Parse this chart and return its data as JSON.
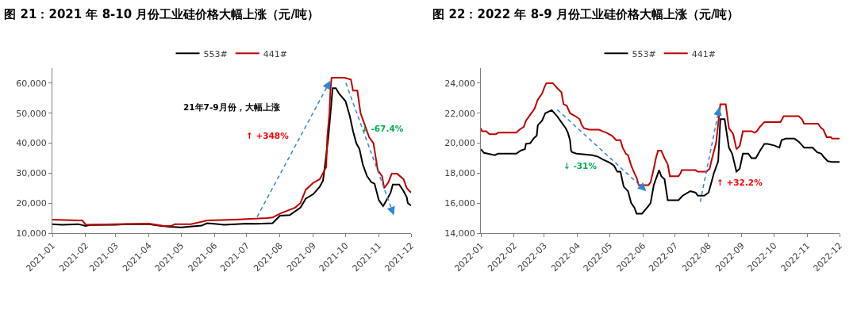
{
  "chart_data": [
    {
      "type": "line",
      "title": "图 21：2021 年 8-10 月份工业硅价格大幅上涨（元/吨）",
      "legend": "top",
      "grid": false,
      "marker": "none",
      "line_style": "solid",
      "xlim": [
        "2021-01-01",
        "2021-12-01"
      ],
      "xticks": [
        "2021-01",
        "2021-02",
        "2021-03",
        "2021-04",
        "2021-05",
        "2021-06",
        "2021-07",
        "2021-08",
        "2021-09",
        "2021-10",
        "2021-11",
        "2021-12"
      ],
      "ylim": [
        10000,
        65000
      ],
      "yticks": [
        {
          "value": 10000,
          "label": "10,000"
        },
        {
          "value": 20000,
          "label": "20,000"
        },
        {
          "value": 30000,
          "label": "30,000"
        },
        {
          "value": 40000,
          "label": "40,000"
        },
        {
          "value": 50000,
          "label": "50,000"
        },
        {
          "value": 60000,
          "label": "60,000"
        }
      ],
      "annotations": [
        "21年7-9月份，大幅上涨",
        "↑ +348%",
        "↓ -67.4%"
      ],
      "series": [
        {
          "name": "553#",
          "color": "#000000",
          "x": [
            "2021-01-01",
            "2021-01-10",
            "2021-01-25",
            "2021-02-01",
            "2021-02-05",
            "2021-03-01",
            "2021-03-10",
            "2021-04-01",
            "2021-04-10",
            "2021-04-20",
            "2021-05-01",
            "2021-05-20",
            "2021-05-25",
            "2021-06-01",
            "2021-06-10",
            "2021-07-01",
            "2021-07-10",
            "2021-07-25",
            "2021-08-01",
            "2021-08-10",
            "2021-08-20",
            "2021-08-25",
            "2021-09-01",
            "2021-09-07",
            "2021-09-10",
            "2021-09-12",
            "2021-09-15",
            "2021-09-17",
            "2021-09-19",
            "2021-09-22",
            "2021-09-25",
            "2021-10-01",
            "2021-10-05",
            "2021-10-08",
            "2021-10-11",
            "2021-10-14",
            "2021-10-17",
            "2021-10-21",
            "2021-10-25",
            "2021-10-28",
            "2021-11-01",
            "2021-11-05",
            "2021-11-09",
            "2021-11-12",
            "2021-11-14",
            "2021-11-20",
            "2021-11-24",
            "2021-11-27",
            "2021-11-28",
            "2021-12-01"
          ],
          "values": [
            13000,
            12800,
            13000,
            12400,
            12700,
            12800,
            13000,
            13000,
            12500,
            12100,
            11900,
            12500,
            13300,
            13100,
            12800,
            13200,
            13100,
            13300,
            15800,
            16000,
            18500,
            21500,
            23000,
            25500,
            27500,
            33000,
            42000,
            50000,
            58300,
            58300,
            56500,
            54000,
            49000,
            44000,
            40000,
            38000,
            33000,
            29000,
            27000,
            26500,
            21000,
            19000,
            21500,
            23500,
            26200,
            26200,
            24000,
            22000,
            20000,
            19200
          ]
        },
        {
          "name": "441#",
          "color": "#c00000",
          "x": [
            "2021-01-01",
            "2021-01-25",
            "2021-01-29",
            "2021-02-01",
            "2021-03-01",
            "2021-04-01",
            "2021-04-08",
            "2021-04-15",
            "2021-04-22",
            "2021-04-25",
            "2021-05-10",
            "2021-05-25",
            "2021-06-01",
            "2021-06-20",
            "2021-07-01",
            "2021-07-20",
            "2021-07-25",
            "2021-08-01",
            "2021-08-08",
            "2021-08-15",
            "2021-08-20",
            "2021-08-25",
            "2021-09-01",
            "2021-09-07",
            "2021-09-10",
            "2021-09-13",
            "2021-09-14",
            "2021-09-16",
            "2021-09-17",
            "2021-09-18",
            "2021-09-30",
            "2021-10-06",
            "2021-10-08",
            "2021-10-12",
            "2021-10-15",
            "2021-10-18",
            "2021-10-23",
            "2021-10-27",
            "2021-10-31",
            "2021-11-04",
            "2021-11-06",
            "2021-11-10",
            "2021-11-13",
            "2021-11-18",
            "2021-11-24",
            "2021-11-27",
            "2021-12-01"
          ],
          "values": [
            14500,
            14200,
            14200,
            12800,
            13000,
            13200,
            12800,
            12400,
            12400,
            13000,
            13000,
            14200,
            14300,
            14500,
            14700,
            15000,
            15200,
            16500,
            17500,
            18500,
            20000,
            24500,
            26800,
            28000,
            30000,
            32000,
            42000,
            50000,
            58000,
            61800,
            61800,
            61200,
            57500,
            57500,
            50000,
            47000,
            42000,
            40000,
            31000,
            29000,
            25000,
            27000,
            29800,
            29800,
            28000,
            25000,
            23500
          ]
        }
      ]
    },
    {
      "type": "line",
      "title": "图 22：2022 年 8-9 月份工业硅价格大幅上涨（元/吨）",
      "legend": "top",
      "grid": false,
      "marker": "none",
      "line_style": "solid",
      "xlim": [
        "2022-01-01",
        "2022-12-01"
      ],
      "xticks": [
        "2022-01",
        "2022-02",
        "2022-03",
        "2022-04",
        "2022-05",
        "2022-06",
        "2022-07",
        "2022-08",
        "2022-09",
        "2022-10",
        "2022-11",
        "2022-12"
      ],
      "ylim": [
        14000,
        25000
      ],
      "yticks": [
        {
          "value": 14000,
          "label": "14,000"
        },
        {
          "value": 16000,
          "label": "16,000"
        },
        {
          "value": 18000,
          "label": "18,000"
        },
        {
          "value": 20000,
          "label": "20,000"
        },
        {
          "value": 22000,
          "label": "22,000"
        },
        {
          "value": 24000,
          "label": "24,000"
        }
      ],
      "annotations": [
        "↓ -31%",
        "↑ +32.2%"
      ],
      "series": [
        {
          "name": "553#",
          "color": "#000000",
          "x": [
            "2022-01-01",
            "2022-01-04",
            "2022-01-14",
            "2022-01-17",
            "2022-02-03",
            "2022-02-07",
            "2022-02-11",
            "2022-02-12",
            "2022-02-16",
            "2022-02-19",
            "2022-02-22",
            "2022-02-23",
            "2022-02-27",
            "2022-03-02",
            "2022-03-08",
            "2022-03-13",
            "2022-03-17",
            "2022-03-21",
            "2022-03-23",
            "2022-03-25",
            "2022-03-26",
            "2022-03-27",
            "2022-03-31",
            "2022-04-15",
            "2022-04-20",
            "2022-04-25",
            "2022-05-01",
            "2022-05-05",
            "2022-05-08",
            "2022-05-11",
            "2022-05-14",
            "2022-05-18",
            "2022-05-21",
            "2022-05-24",
            "2022-05-26",
            "2022-05-31",
            "2022-06-06",
            "2022-06-08",
            "2022-06-11",
            "2022-06-13",
            "2022-06-16",
            "2022-06-18",
            "2022-06-21",
            "2022-06-24",
            "2022-07-04",
            "2022-07-08",
            "2022-07-15",
            "2022-07-20",
            "2022-07-22",
            "2022-07-28",
            "2022-08-01",
            "2022-08-03",
            "2022-08-06",
            "2022-08-10",
            "2022-08-12",
            "2022-08-16",
            "2022-08-20",
            "2022-08-23",
            "2022-08-27",
            "2022-08-30",
            "2022-09-02",
            "2022-09-07",
            "2022-09-10",
            "2022-09-14",
            "2022-09-18",
            "2022-09-22",
            "2022-09-25",
            "2022-10-01",
            "2022-10-06",
            "2022-10-08",
            "2022-10-12",
            "2022-10-20",
            "2022-10-24",
            "2022-10-29",
            "2022-11-06",
            "2022-11-10",
            "2022-11-14",
            "2022-11-16",
            "2022-11-20",
            "2022-11-24",
            "2022-12-01"
          ],
          "values": [
            19600,
            19350,
            19200,
            19300,
            19300,
            19500,
            19600,
            19950,
            20000,
            20300,
            20500,
            21200,
            21500,
            22000,
            22200,
            21800,
            21400,
            21000,
            20700,
            20200,
            19500,
            19400,
            19300,
            19200,
            19100,
            18900,
            18700,
            18500,
            18100,
            18100,
            17100,
            16800,
            16000,
            15700,
            15300,
            15300,
            15800,
            16000,
            17200,
            17600,
            18200,
            17800,
            17600,
            16200,
            16200,
            16500,
            16800,
            16700,
            16500,
            16500,
            16700,
            17200,
            18000,
            18800,
            21600,
            21600,
            19700,
            19300,
            18100,
            18300,
            19300,
            19300,
            19000,
            19000,
            19500,
            19950,
            19950,
            19850,
            19700,
            20200,
            20300,
            20300,
            20100,
            19700,
            19700,
            19400,
            19300,
            19100,
            18800,
            18750,
            18750
          ]
        },
        {
          "name": "441#",
          "color": "#c00000",
          "x": [
            "2022-01-01",
            "2022-01-02",
            "2022-01-06",
            "2022-01-09",
            "2022-01-15",
            "2022-01-17",
            "2022-02-03",
            "2022-02-06",
            "2022-02-10",
            "2022-02-12",
            "2022-02-16",
            "2022-02-20",
            "2022-02-23",
            "2022-02-27",
            "2022-03-01",
            "2022-03-03",
            "2022-03-09",
            "2022-03-14",
            "2022-03-17",
            "2022-03-19",
            "2022-03-22",
            "2022-03-25",
            "2022-03-30",
            "2022-04-03",
            "2022-04-05",
            "2022-04-07",
            "2022-04-12",
            "2022-04-21",
            "2022-04-24",
            "2022-04-28",
            "2022-05-03",
            "2022-05-07",
            "2022-05-11",
            "2022-05-13",
            "2022-05-16",
            "2022-05-18",
            "2022-05-21",
            "2022-05-24",
            "2022-05-26",
            "2022-05-28",
            "2022-06-06",
            "2022-06-08",
            "2022-06-11",
            "2022-06-13",
            "2022-06-15",
            "2022-06-18",
            "2022-06-21",
            "2022-06-24",
            "2022-06-26",
            "2022-07-04",
            "2022-07-06",
            "2022-07-07",
            "2022-07-20",
            "2022-07-22",
            "2022-07-30",
            "2022-08-02",
            "2022-08-04",
            "2022-08-08",
            "2022-08-12",
            "2022-08-17",
            "2022-08-20",
            "2022-08-24",
            "2022-08-27",
            "2022-08-30",
            "2022-09-02",
            "2022-09-10",
            "2022-09-13",
            "2022-09-15",
            "2022-09-18",
            "2022-09-22",
            "2022-10-07",
            "2022-10-10",
            "2022-10-24",
            "2022-10-27",
            "2022-10-29",
            "2022-11-11",
            "2022-11-14",
            "2022-11-16",
            "2022-11-19",
            "2022-11-23",
            "2022-11-24",
            "2022-12-01"
          ],
          "values": [
            21000,
            20800,
            20800,
            20600,
            20600,
            20700,
            20700,
            20900,
            21100,
            21500,
            21900,
            22300,
            22900,
            23300,
            23700,
            24000,
            24000,
            23600,
            23400,
            22600,
            22500,
            22000,
            21800,
            21600,
            21200,
            21000,
            20900,
            20900,
            20800,
            20700,
            20500,
            20200,
            20200,
            19700,
            19300,
            19200,
            18500,
            18000,
            17700,
            17200,
            17200,
            17400,
            18300,
            19000,
            19500,
            19500,
            19000,
            18600,
            17800,
            17800,
            18000,
            18200,
            18200,
            18100,
            18100,
            18300,
            18900,
            20000,
            22600,
            22600,
            21000,
            20600,
            19600,
            19800,
            20800,
            20800,
            20700,
            20800,
            21100,
            21400,
            21400,
            21800,
            21800,
            21600,
            21300,
            21300,
            21000,
            20900,
            20400,
            20400,
            20300,
            20300
          ]
        }
      ]
    }
  ]
}
